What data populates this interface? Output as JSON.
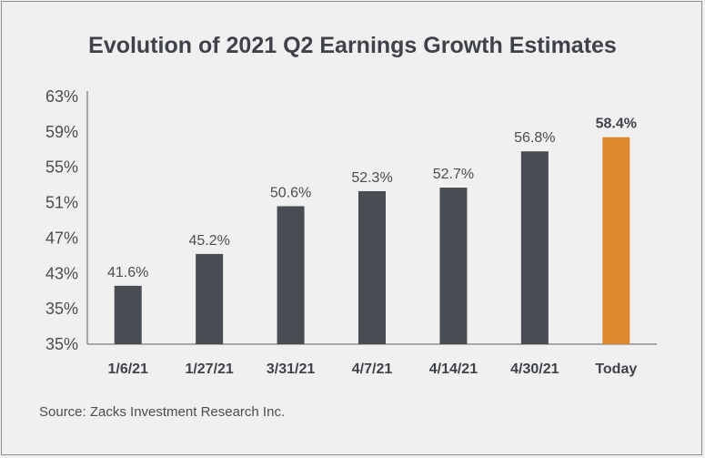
{
  "chart_data": {
    "type": "bar",
    "title": "Evolution of 2021 Q2 Earnings Growth Estimates",
    "categories": [
      "1/6/21",
      "1/27/21",
      "3/31/21",
      "4/7/21",
      "4/14/21",
      "4/30/21",
      "Today"
    ],
    "values": [
      41.6,
      45.2,
      50.6,
      52.3,
      52.7,
      56.8,
      58.4
    ],
    "data_labels": [
      "41.6%",
      "45.2%",
      "50.6%",
      "52.3%",
      "52.7%",
      "56.8%",
      "58.4%"
    ],
    "highlight_index": 6,
    "yticks": [
      "63%",
      "59%",
      "55%",
      "51%",
      "47%",
      "43%",
      "35%",
      "35%"
    ],
    "ylim": [
      35,
      63
    ],
    "xlabel": "",
    "ylabel": "",
    "grid": false,
    "colors": {
      "bar": "#484d54",
      "highlight": "#de8a2c",
      "axis": "#8f8f8f"
    }
  },
  "source": "Source: Zacks Investment Research Inc."
}
